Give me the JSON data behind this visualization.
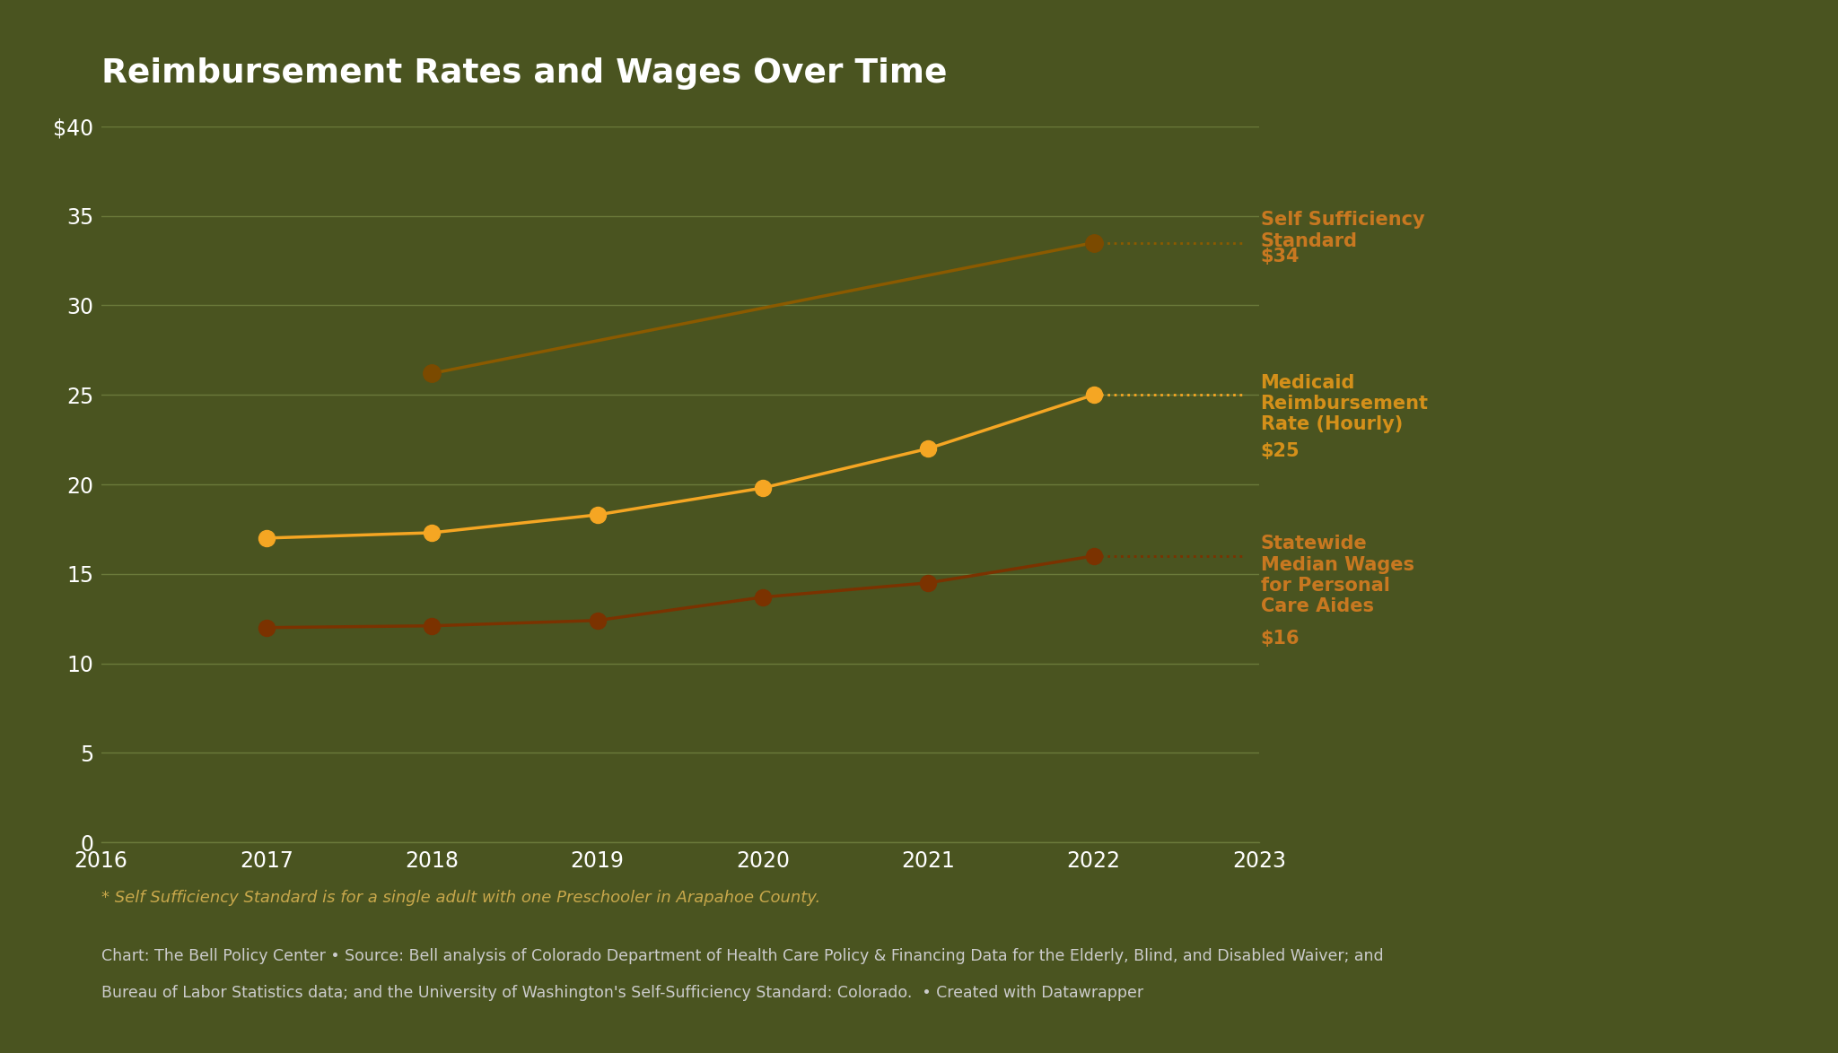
{
  "title": "Reimbursement Rates and Wages Over Time",
  "background_color": "#4a5420",
  "plot_bg_color": "#4a5420",
  "text_color": "#ffffff",
  "grid_color": "#6b7a3a",
  "xlim": [
    2016,
    2023
  ],
  "ylim": [
    0,
    40
  ],
  "yticks": [
    0,
    5,
    10,
    15,
    20,
    25,
    30,
    35,
    40
  ],
  "ytick_labels": [
    "0",
    "5",
    "10",
    "15",
    "20",
    "25",
    "30",
    "35",
    "$40"
  ],
  "xticks": [
    2016,
    2017,
    2018,
    2019,
    2020,
    2021,
    2022,
    2023
  ],
  "self_sufficiency": {
    "years": [
      2018,
      2022
    ],
    "values": [
      26.2,
      33.5
    ],
    "color": "#8B5A00",
    "marker_color": "#7B4A00",
    "label_line1": "Self Sufficiency",
    "label_line2": "Standard",
    "label_line3": "$34"
  },
  "medicaid": {
    "years": [
      2017,
      2018,
      2019,
      2020,
      2021,
      2022
    ],
    "values": [
      17.0,
      17.3,
      18.3,
      19.8,
      22.0,
      25.0
    ],
    "color": "#F5A623",
    "label_line1": "Medicaid",
    "label_line2": "Reimbursement",
    "label_line3": "Rate (Hourly)",
    "label_line4": "$25"
  },
  "wages": {
    "years": [
      2017,
      2018,
      2019,
      2020,
      2021,
      2022
    ],
    "values": [
      12.0,
      12.1,
      12.4,
      13.7,
      14.5,
      16.0
    ],
    "color": "#7B3200",
    "label_line1": "Statewide",
    "label_line2": "Median Wages",
    "label_line3": "for Personal",
    "label_line4": "Care Aides",
    "label_line5": "$16"
  },
  "label_color_sss": "#C87820",
  "label_color_medicaid": "#D4901A",
  "label_color_wages": "#C87820",
  "footnote": "* Self Sufficiency Standard is for a single adult with one Preschooler in Arapahoe County.",
  "footnote_color": "#C8A84B",
  "source_line1": "Chart: The Bell Policy Center • Source: Bell analysis of Colorado Department of Health Care Policy & Financing Data for the Elderly, Blind, and Disabled Waiver; and",
  "source_line2": "Bureau of Labor Statistics data; and the University of Washington's Self-Sufficiency Standard: Colorado.  • Created with Datawrapper",
  "source_color": "#cccccc",
  "dotted_x_end": 2022.92
}
